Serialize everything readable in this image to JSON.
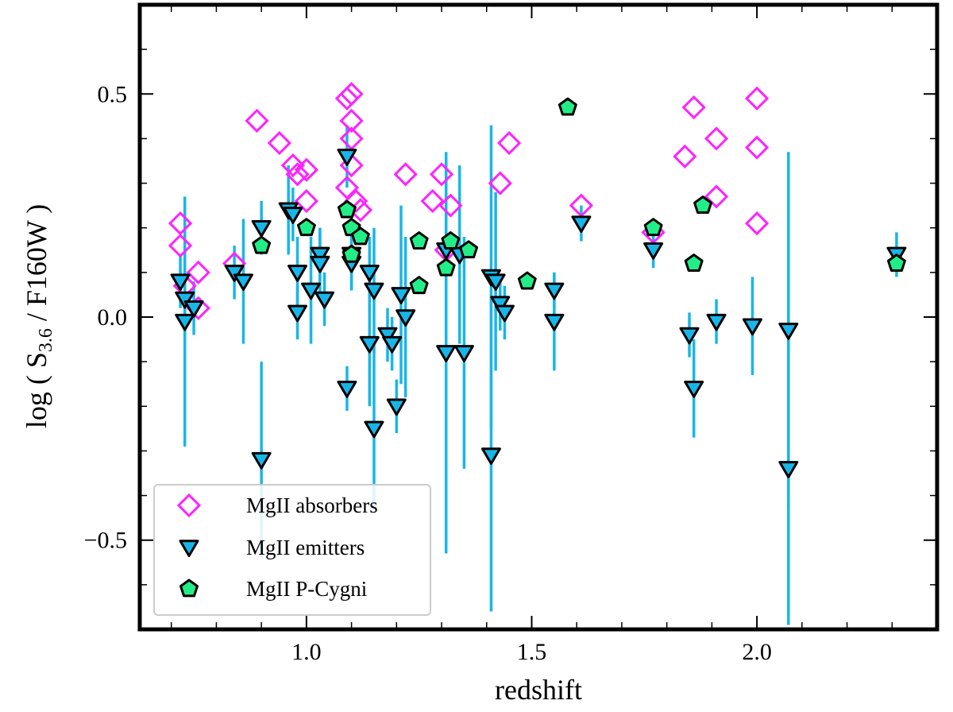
{
  "chart_data": {
    "type": "scatter",
    "xlabel": "redshift",
    "ylabel_parts": {
      "pre": "log ( S",
      "sub": "3.6",
      "post": " / F160W )"
    },
    "xlim": [
      0.63,
      2.4
    ],
    "ylim": [
      -0.7,
      0.7
    ],
    "x_ticks": [
      1.0,
      1.5,
      2.0
    ],
    "x_tick_labels": [
      "1.0",
      "1.5",
      "2.0"
    ],
    "y_ticks": [
      -0.5,
      0.0,
      0.5
    ],
    "y_tick_labels": [
      "−0.5",
      "0.0",
      "0.5"
    ],
    "legend_position": "lower-left",
    "colors": {
      "absorbers": "#ff22ff",
      "emitters": "#18b6e8",
      "pcygni": "#22ee88",
      "errorbar": "#18b6e8"
    },
    "series": [
      {
        "name": "MgII absorbers",
        "marker": "diamond",
        "points": [
          [
            0.72,
            0.21
          ],
          [
            0.72,
            0.16
          ],
          [
            0.73,
            0.07
          ],
          [
            0.76,
            0.1
          ],
          [
            0.76,
            0.02
          ],
          [
            0.84,
            0.12
          ],
          [
            0.89,
            0.44
          ],
          [
            0.94,
            0.39
          ],
          [
            0.97,
            0.34
          ],
          [
            0.98,
            0.32
          ],
          [
            1.0,
            0.33
          ],
          [
            1.0,
            0.26
          ],
          [
            1.09,
            0.49
          ],
          [
            1.1,
            0.5
          ],
          [
            1.1,
            0.44
          ],
          [
            1.1,
            0.4
          ],
          [
            1.1,
            0.34
          ],
          [
            1.09,
            0.29
          ],
          [
            1.11,
            0.26
          ],
          [
            1.12,
            0.24
          ],
          [
            1.22,
            0.32
          ],
          [
            1.28,
            0.26
          ],
          [
            1.3,
            0.32
          ],
          [
            1.31,
            0.15
          ],
          [
            1.32,
            0.25
          ],
          [
            1.43,
            0.3
          ],
          [
            1.45,
            0.39
          ],
          [
            1.61,
            0.25
          ],
          [
            1.77,
            0.19
          ],
          [
            1.84,
            0.36
          ],
          [
            1.86,
            0.47
          ],
          [
            1.91,
            0.4
          ],
          [
            1.91,
            0.27
          ],
          [
            2.0,
            0.49
          ],
          [
            2.0,
            0.38
          ],
          [
            2.0,
            0.21
          ]
        ]
      },
      {
        "name": "MgII emitters",
        "marker": "triangle-down",
        "points": [
          [
            0.72,
            0.08,
            0.06
          ],
          [
            0.73,
            0.04,
            0.1
          ],
          [
            0.73,
            -0.01,
            0.28
          ],
          [
            0.75,
            0.02,
            0.06
          ],
          [
            0.84,
            0.1,
            0.06
          ],
          [
            0.86,
            0.08,
            0.14
          ],
          [
            0.9,
            0.2,
            0.06
          ],
          [
            0.9,
            -0.32,
            0.22
          ],
          [
            0.96,
            0.24,
            0.1
          ],
          [
            0.97,
            0.23,
            0.06
          ],
          [
            0.98,
            0.1,
            0.08
          ],
          [
            0.98,
            0.01,
            0.06
          ],
          [
            1.01,
            0.06,
            0.12
          ],
          [
            1.03,
            0.14,
            0.06
          ],
          [
            1.03,
            0.12,
            0.08
          ],
          [
            1.04,
            0.04,
            0.06
          ],
          [
            1.09,
            0.36,
            0.07
          ],
          [
            1.09,
            -0.16,
            0.05
          ],
          [
            1.1,
            0.14,
            0.08
          ],
          [
            1.1,
            0.12,
            0.06
          ],
          [
            1.14,
            0.1,
            0.08
          ],
          [
            1.15,
            0.06,
            0.14
          ],
          [
            1.14,
            -0.06,
            0.14
          ],
          [
            1.15,
            -0.25,
            0.18
          ],
          [
            1.18,
            -0.04,
            0.06
          ],
          [
            1.19,
            -0.06,
            0.06
          ],
          [
            1.2,
            -0.2,
            0.06
          ],
          [
            1.21,
            0.05,
            0.2
          ],
          [
            1.22,
            -0.0,
            0.18
          ],
          [
            1.31,
            0.15,
            0.2
          ],
          [
            1.31,
            -0.08,
            0.45
          ],
          [
            1.34,
            0.14,
            0.2
          ],
          [
            1.35,
            -0.08,
            0.26
          ],
          [
            1.41,
            0.09,
            0.34
          ],
          [
            1.42,
            0.08,
            0.2
          ],
          [
            1.41,
            -0.31,
            0.35
          ],
          [
            1.43,
            0.03,
            0.06
          ],
          [
            1.44,
            0.01,
            0.06
          ],
          [
            1.55,
            0.06,
            0.04
          ],
          [
            1.55,
            -0.01,
            0.11
          ],
          [
            1.61,
            0.21,
            0.04
          ],
          [
            1.77,
            0.15,
            0.04
          ],
          [
            1.85,
            -0.04,
            0.05
          ],
          [
            1.86,
            -0.16,
            0.11
          ],
          [
            1.91,
            -0.01,
            0.05
          ],
          [
            1.99,
            -0.02,
            0.11
          ],
          [
            2.07,
            -0.03,
            0.4
          ],
          [
            2.07,
            -0.34,
            0.35
          ],
          [
            2.31,
            0.14,
            0.05
          ]
        ]
      },
      {
        "name": "MgII P-Cygni",
        "marker": "pentagon",
        "points": [
          [
            0.9,
            0.16
          ],
          [
            1.0,
            0.2
          ],
          [
            1.09,
            0.24
          ],
          [
            1.1,
            0.2
          ],
          [
            1.1,
            0.14
          ],
          [
            1.12,
            0.18
          ],
          [
            1.25,
            0.17
          ],
          [
            1.25,
            0.07
          ],
          [
            1.31,
            0.11
          ],
          [
            1.32,
            0.17
          ],
          [
            1.36,
            0.15
          ],
          [
            1.49,
            0.08
          ],
          [
            1.58,
            0.47
          ],
          [
            1.77,
            0.2
          ],
          [
            1.86,
            0.12
          ],
          [
            1.88,
            0.25
          ],
          [
            2.31,
            0.12
          ]
        ]
      }
    ]
  }
}
